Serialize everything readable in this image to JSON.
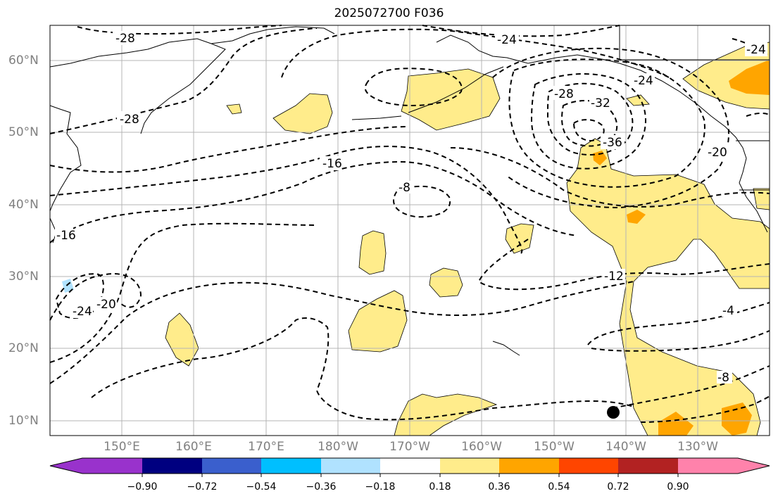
{
  "title": "2025072700 F036",
  "lat_labels": [
    "60°N",
    "50°N",
    "40°N",
    "30°N",
    "20°N",
    "10°N"
  ],
  "lon_labels": [
    "150°E",
    "160°E",
    "170°E",
    "180°W",
    "170°W",
    "160°W",
    "150°W",
    "140°W",
    "130°W"
  ],
  "contour_labels": [
    "-28",
    "-24",
    "-28",
    "-16",
    "-8",
    "-16",
    "-24",
    "-20",
    "-36",
    "-32",
    "-28",
    "-24",
    "-20",
    "-24",
    "-12",
    "-4",
    "-8"
  ],
  "colorbar": {
    "ticks": [
      "−0.90",
      "−0.72",
      "−0.54",
      "−0.36",
      "−0.18",
      "0.18",
      "0.36",
      "0.54",
      "0.72",
      "0.90"
    ],
    "colors": [
      "#9932cc",
      "#000080",
      "#3a5fcd",
      "#00bfff",
      "#b0e2ff",
      "#ffffff",
      "#ffec8b",
      "#ffa500",
      "#ff4500",
      "#b22222",
      "#ff82ab"
    ]
  },
  "fill_colors": {
    "light": "#ffec8b",
    "orange": "#ffa500",
    "blue": "#b0e2ff"
  },
  "marker": "storm-center-dot"
}
